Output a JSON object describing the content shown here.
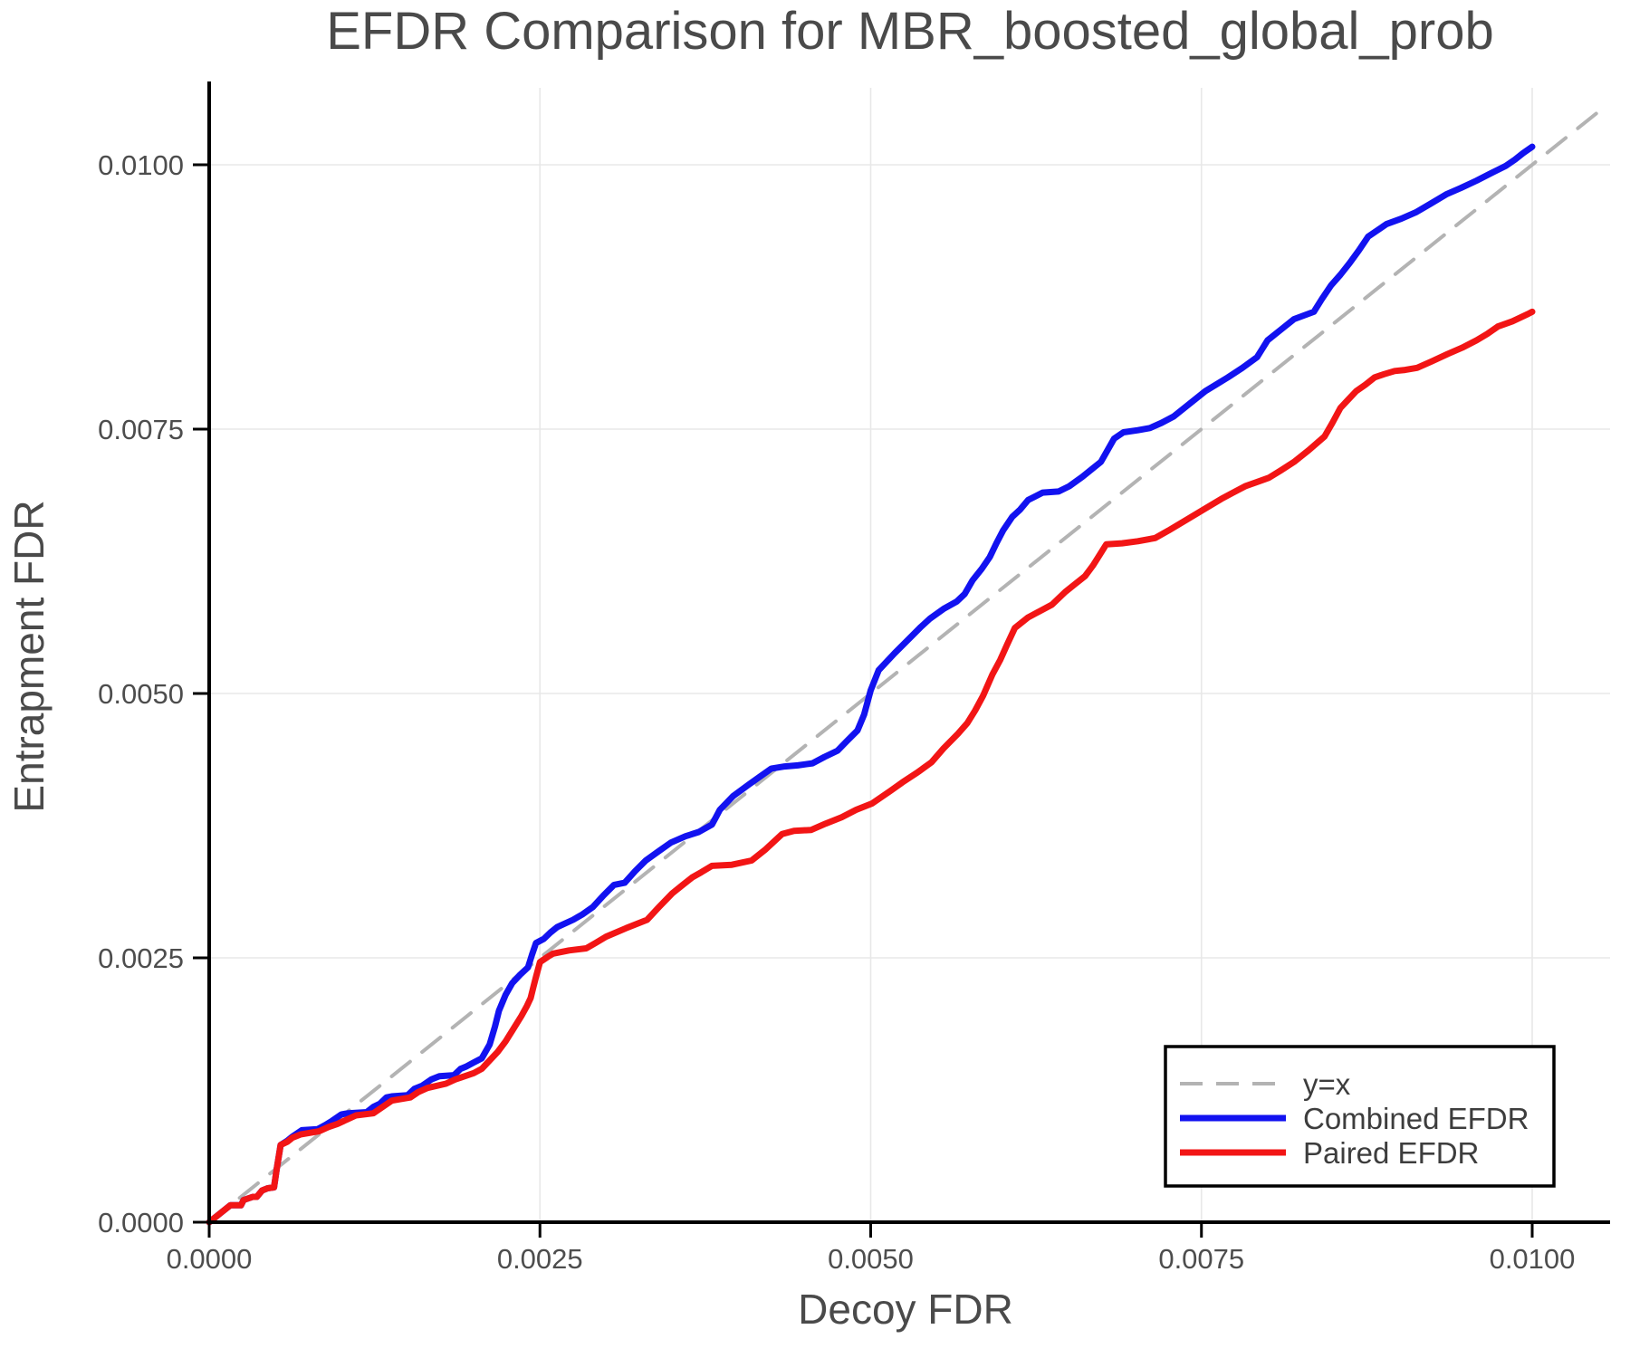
{
  "chart_data": {
    "type": "line",
    "title": "EFDR Comparison for MBR_boosted_global_prob",
    "xlabel": "Decoy FDR",
    "ylabel": "Entrapment FDR",
    "xlim": [
      0.0,
      0.0105
    ],
    "ylim": [
      0.0,
      0.0108
    ],
    "grid": true,
    "grid_color": "#e8e8e8",
    "background_color": "#ffffff",
    "spine_color": "#000000",
    "text_color": "#4a4a4a",
    "legend_position": "lower right",
    "x_ticks": {
      "values": [
        0.0,
        0.0025,
        0.005,
        0.0075,
        0.01
      ],
      "labels": [
        "0.0000",
        "0.0025",
        "0.0050",
        "0.0075",
        "0.0100"
      ]
    },
    "y_ticks": {
      "values": [
        0.0,
        0.0025,
        0.005,
        0.0075,
        0.01
      ],
      "labels": [
        "0.0000",
        "0.0025",
        "0.0050",
        "0.0075",
        "0.0100"
      ]
    },
    "point_scale": 0.0001,
    "point_scale_note": "series point coordinates are FDR values expressed in units of 1e-4 (multiply by point_scale for absolute value)",
    "series": [
      {
        "name": "y=x",
        "role": "reference-line",
        "color": "#b3b3b3",
        "style": "dashed",
        "width": 4,
        "points": [
          [
            0,
            0
          ],
          [
            105.3,
            105.3
          ]
        ]
      },
      {
        "name": "Combined EFDR",
        "role": "data",
        "color": "#1212f0",
        "style": "solid",
        "width": 7,
        "points": [
          [
            0,
            0
          ],
          [
            0.7,
            0.7
          ],
          [
            1.6,
            1.6
          ],
          [
            2.4,
            1.6
          ],
          [
            2.6,
            2.1
          ],
          [
            3.3,
            2.4
          ],
          [
            3.6,
            2.4
          ],
          [
            4.0,
            3.0
          ],
          [
            4.4,
            3.2
          ],
          [
            4.9,
            3.3
          ],
          [
            5.1,
            5.0
          ],
          [
            5.4,
            7.3
          ],
          [
            5.9,
            7.7
          ],
          [
            6.3,
            8.1
          ],
          [
            7.0,
            8.7
          ],
          [
            8.2,
            8.8
          ],
          [
            8.8,
            9.2
          ],
          [
            9.3,
            9.6
          ],
          [
            10.0,
            10.2
          ],
          [
            10.5,
            10.3
          ],
          [
            11.9,
            10.4
          ],
          [
            12.4,
            10.9
          ],
          [
            12.9,
            11.2
          ],
          [
            13.4,
            11.8
          ],
          [
            13.8,
            11.9
          ],
          [
            15.0,
            12.0
          ],
          [
            15.5,
            12.6
          ],
          [
            16.1,
            12.9
          ],
          [
            16.8,
            13.5
          ],
          [
            17.4,
            13.8
          ],
          [
            18.5,
            13.9
          ],
          [
            19.0,
            14.5
          ],
          [
            19.4,
            14.7
          ],
          [
            20.0,
            15.1
          ],
          [
            20.6,
            15.5
          ],
          [
            21.2,
            16.8
          ],
          [
            21.6,
            18.5
          ],
          [
            21.9,
            20.0
          ],
          [
            22.4,
            21.5
          ],
          [
            22.9,
            22.6
          ],
          [
            23.5,
            23.4
          ],
          [
            24.1,
            24.1
          ],
          [
            24.4,
            25.3
          ],
          [
            24.7,
            26.4
          ],
          [
            25.3,
            26.8
          ],
          [
            25.8,
            27.4
          ],
          [
            26.3,
            27.9
          ],
          [
            27.5,
            28.6
          ],
          [
            28.2,
            29.1
          ],
          [
            29.0,
            29.8
          ],
          [
            29.8,
            30.9
          ],
          [
            30.6,
            31.9
          ],
          [
            31.4,
            32.1
          ],
          [
            32.2,
            33.2
          ],
          [
            33.0,
            34.2
          ],
          [
            34.0,
            35.1
          ],
          [
            34.9,
            35.9
          ],
          [
            36.0,
            36.5
          ],
          [
            37.0,
            36.9
          ],
          [
            38.0,
            37.6
          ],
          [
            38.3,
            38.3
          ],
          [
            38.6,
            39.0
          ],
          [
            39.6,
            40.3
          ],
          [
            40.8,
            41.4
          ],
          [
            41.7,
            42.2
          ],
          [
            42.5,
            42.9
          ],
          [
            43.5,
            43.1
          ],
          [
            44.5,
            43.2
          ],
          [
            45.6,
            43.4
          ],
          [
            46.5,
            44.0
          ],
          [
            47.5,
            44.6
          ],
          [
            48.2,
            45.5
          ],
          [
            49.0,
            46.5
          ],
          [
            49.5,
            48.0
          ],
          [
            50.0,
            50.3
          ],
          [
            50.6,
            52.2
          ],
          [
            51.8,
            53.8
          ],
          [
            53.0,
            55.3
          ],
          [
            53.8,
            56.3
          ],
          [
            54.5,
            57.1
          ],
          [
            55.5,
            58.0
          ],
          [
            56.5,
            58.7
          ],
          [
            57.1,
            59.4
          ],
          [
            57.7,
            60.7
          ],
          [
            58.4,
            61.8
          ],
          [
            59.0,
            62.9
          ],
          [
            59.5,
            64.2
          ],
          [
            60.0,
            65.4
          ],
          [
            60.7,
            66.7
          ],
          [
            61.3,
            67.4
          ],
          [
            61.9,
            68.3
          ],
          [
            63.0,
            69.0
          ],
          [
            64.2,
            69.1
          ],
          [
            65.0,
            69.6
          ],
          [
            66.0,
            70.5
          ],
          [
            66.7,
            71.2
          ],
          [
            67.4,
            71.9
          ],
          [
            67.9,
            73.0
          ],
          [
            68.4,
            74.1
          ],
          [
            69.1,
            74.7
          ],
          [
            70.2,
            74.9
          ],
          [
            71.1,
            75.1
          ],
          [
            72.0,
            75.6
          ],
          [
            72.9,
            76.2
          ],
          [
            74.1,
            77.4
          ],
          [
            75.3,
            78.6
          ],
          [
            76.1,
            79.2
          ],
          [
            77.0,
            79.9
          ],
          [
            78.1,
            80.8
          ],
          [
            79.2,
            81.8
          ],
          [
            79.6,
            82.6
          ],
          [
            80.0,
            83.4
          ],
          [
            81.0,
            84.4
          ],
          [
            82.0,
            85.4
          ],
          [
            83.5,
            86.1
          ],
          [
            84.1,
            87.3
          ],
          [
            84.8,
            88.6
          ],
          [
            85.5,
            89.6
          ],
          [
            86.2,
            90.7
          ],
          [
            86.9,
            91.9
          ],
          [
            87.6,
            93.2
          ],
          [
            88.3,
            93.8
          ],
          [
            89.0,
            94.4
          ],
          [
            90.1,
            94.9
          ],
          [
            91.2,
            95.5
          ],
          [
            92.3,
            96.3
          ],
          [
            93.5,
            97.2
          ],
          [
            94.6,
            97.8
          ],
          [
            95.8,
            98.5
          ],
          [
            96.9,
            99.2
          ],
          [
            98.0,
            99.9
          ],
          [
            98.7,
            100.5
          ],
          [
            99.3,
            101.1
          ],
          [
            100.0,
            101.7
          ]
        ]
      },
      {
        "name": "Paired EFDR",
        "role": "data",
        "color": "#f21515",
        "style": "solid",
        "width": 7,
        "points": [
          [
            0,
            0
          ],
          [
            0.7,
            0.7
          ],
          [
            1.6,
            1.6
          ],
          [
            2.4,
            1.6
          ],
          [
            2.6,
            2.1
          ],
          [
            3.3,
            2.4
          ],
          [
            3.6,
            2.4
          ],
          [
            4.0,
            3.0
          ],
          [
            4.4,
            3.2
          ],
          [
            4.9,
            3.3
          ],
          [
            5.1,
            5.0
          ],
          [
            5.4,
            7.3
          ],
          [
            5.9,
            7.6
          ],
          [
            6.3,
            8.0
          ],
          [
            6.9,
            8.3
          ],
          [
            8.3,
            8.6
          ],
          [
            9.0,
            9.0
          ],
          [
            9.7,
            9.3
          ],
          [
            10.4,
            9.7
          ],
          [
            11.1,
            10.1
          ],
          [
            12.4,
            10.3
          ],
          [
            13.1,
            10.9
          ],
          [
            13.8,
            11.5
          ],
          [
            15.2,
            11.8
          ],
          [
            15.8,
            12.3
          ],
          [
            16.5,
            12.7
          ],
          [
            17.9,
            13.1
          ],
          [
            18.6,
            13.5
          ],
          [
            19.3,
            13.8
          ],
          [
            20.0,
            14.1
          ],
          [
            20.6,
            14.5
          ],
          [
            21.2,
            15.3
          ],
          [
            21.8,
            16.1
          ],
          [
            22.4,
            17.1
          ],
          [
            22.9,
            18.1
          ],
          [
            23.6,
            19.5
          ],
          [
            24.0,
            20.4
          ],
          [
            24.3,
            21.2
          ],
          [
            24.5,
            22.2
          ],
          [
            24.7,
            23.2
          ],
          [
            25.0,
            24.6
          ],
          [
            25.6,
            25.1
          ],
          [
            26.0,
            25.4
          ],
          [
            27.2,
            25.7
          ],
          [
            28.5,
            25.9
          ],
          [
            29.2,
            26.4
          ],
          [
            30.0,
            27.0
          ],
          [
            31.5,
            27.8
          ],
          [
            33.1,
            28.6
          ],
          [
            34.0,
            29.8
          ],
          [
            35.0,
            31.1
          ],
          [
            35.8,
            31.9
          ],
          [
            36.5,
            32.6
          ],
          [
            37.2,
            33.1
          ],
          [
            38.0,
            33.7
          ],
          [
            39.5,
            33.8
          ],
          [
            41.0,
            34.2
          ],
          [
            42.0,
            35.2
          ],
          [
            43.3,
            36.7
          ],
          [
            44.2,
            37.0
          ],
          [
            45.5,
            37.1
          ],
          [
            46.6,
            37.7
          ],
          [
            47.8,
            38.3
          ],
          [
            48.9,
            39.0
          ],
          [
            50.1,
            39.6
          ],
          [
            51.5,
            40.8
          ],
          [
            52.4,
            41.6
          ],
          [
            53.5,
            42.5
          ],
          [
            54.6,
            43.5
          ],
          [
            55.5,
            44.8
          ],
          [
            56.6,
            46.2
          ],
          [
            57.3,
            47.2
          ],
          [
            57.9,
            48.4
          ],
          [
            58.5,
            49.8
          ],
          [
            59.2,
            51.8
          ],
          [
            59.8,
            53.2
          ],
          [
            60.3,
            54.6
          ],
          [
            60.9,
            56.2
          ],
          [
            61.9,
            57.2
          ],
          [
            62.8,
            57.8
          ],
          [
            63.7,
            58.4
          ],
          [
            64.7,
            59.6
          ],
          [
            65.4,
            60.3
          ],
          [
            66.2,
            61.1
          ],
          [
            66.8,
            62.1
          ],
          [
            67.3,
            63.1
          ],
          [
            67.8,
            64.1
          ],
          [
            69.0,
            64.2
          ],
          [
            70.2,
            64.4
          ],
          [
            71.5,
            64.7
          ],
          [
            72.5,
            65.4
          ],
          [
            73.3,
            66.0
          ],
          [
            74.1,
            66.6
          ],
          [
            75.3,
            67.5
          ],
          [
            76.5,
            68.4
          ],
          [
            77.4,
            69.0
          ],
          [
            78.3,
            69.6
          ],
          [
            79.2,
            70.0
          ],
          [
            80.1,
            70.4
          ],
          [
            81.0,
            71.1
          ],
          [
            82.0,
            71.9
          ],
          [
            83.1,
            73.0
          ],
          [
            84.3,
            74.3
          ],
          [
            84.9,
            75.6
          ],
          [
            85.5,
            77.0
          ],
          [
            86.1,
            77.8
          ],
          [
            86.7,
            78.6
          ],
          [
            87.4,
            79.2
          ],
          [
            88.1,
            79.9
          ],
          [
            88.8,
            80.2
          ],
          [
            89.6,
            80.5
          ],
          [
            90.4,
            80.6
          ],
          [
            91.3,
            80.8
          ],
          [
            92.4,
            81.4
          ],
          [
            93.6,
            82.1
          ],
          [
            94.7,
            82.7
          ],
          [
            95.8,
            83.4
          ],
          [
            96.6,
            84.0
          ],
          [
            97.4,
            84.7
          ],
          [
            98.5,
            85.2
          ],
          [
            99.7,
            85.9
          ],
          [
            100.0,
            86.1
          ]
        ]
      }
    ],
    "legend": {
      "entries": [
        {
          "label": "y=x"
        },
        {
          "label": "Combined EFDR"
        },
        {
          "label": "Paired EFDR"
        }
      ]
    }
  }
}
